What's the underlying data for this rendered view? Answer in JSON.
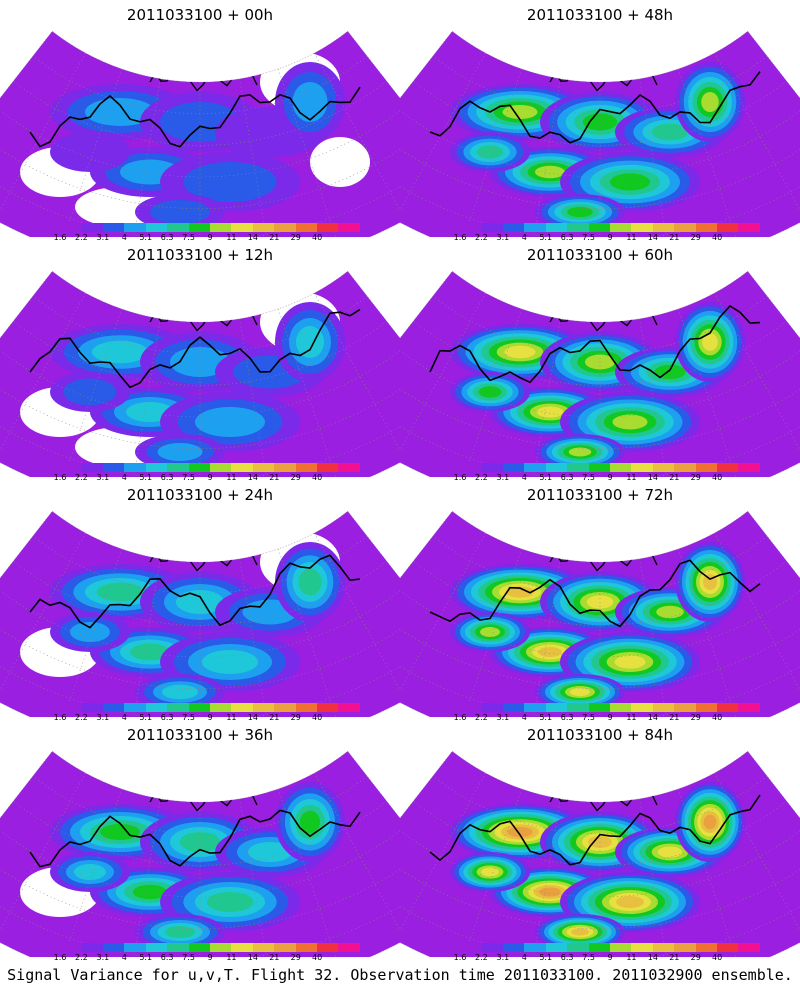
{
  "panels": [
    {
      "title": "2011033100 + 00h",
      "intensity": 0
    },
    {
      "title": "2011033100 + 48h",
      "intensity": 4
    },
    {
      "title": "2011033100 + 12h",
      "intensity": 1
    },
    {
      "title": "2011033100 + 60h",
      "intensity": 5
    },
    {
      "title": "2011033100 + 24h",
      "intensity": 2
    },
    {
      "title": "2011033100 + 72h",
      "intensity": 6
    },
    {
      "title": "2011033100 + 36h",
      "intensity": 3
    },
    {
      "title": "2011033100 + 84h",
      "intensity": 7
    }
  ],
  "colorbar": {
    "labels": [
      "1.6",
      "2.2",
      "3.1",
      "4",
      "5.1",
      "6.3",
      "7.5",
      "9",
      "11",
      "14",
      "21",
      "29",
      "40"
    ],
    "colors": [
      "#9a1fe0",
      "#7a2ae8",
      "#2a5ae8",
      "#1ea0f0",
      "#1ec8d8",
      "#20c890",
      "#10c820",
      "#a8dc30",
      "#e6e040",
      "#e8c040",
      "#e8a040",
      "#f07030",
      "#f03040",
      "#f01090"
    ]
  },
  "caption": "Signal Variance for u,v,T. Flight 32. Observation time 2011033100. 2011032900 ensemble."
}
